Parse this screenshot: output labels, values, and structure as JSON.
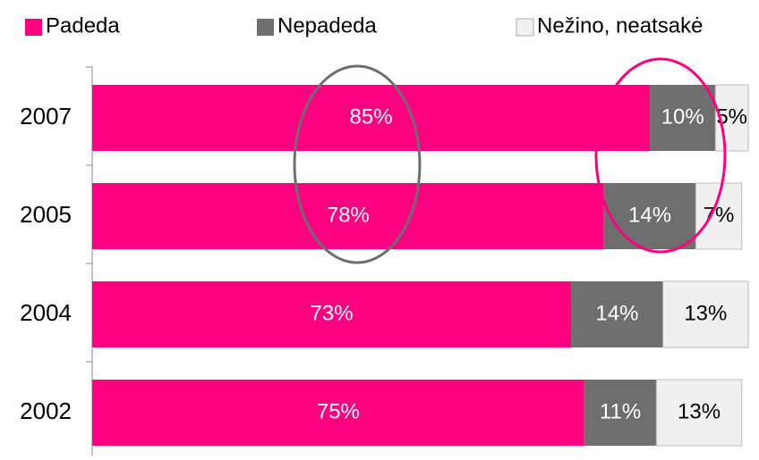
{
  "chart_data": {
    "type": "stacked-bar-horizontal",
    "categories": [
      "2007",
      "2005",
      "2004",
      "2002"
    ],
    "xlim": [
      0,
      100
    ],
    "legend": "top",
    "series": [
      {
        "name": "Padeda",
        "color": "#ff0080",
        "label_color": "#ffffff",
        "values": [
          85,
          78,
          73,
          75
        ],
        "value_labels": [
          "85%",
          "78%",
          "73%",
          "75%"
        ]
      },
      {
        "name": "Nepadeda",
        "color": "#6e6e6e",
        "label_color": "#ffffff",
        "values": [
          10,
          14,
          14,
          11
        ],
        "value_labels": [
          "10%",
          "14%",
          "14%",
          "11%"
        ]
      },
      {
        "name": "Nežino, neatsakė",
        "color": "#f0f0f0",
        "label_color": "#000000",
        "values": [
          5,
          7,
          13,
          13
        ],
        "value_labels": [
          "5%",
          "7%",
          "13%",
          "13%"
        ]
      }
    ]
  }
}
